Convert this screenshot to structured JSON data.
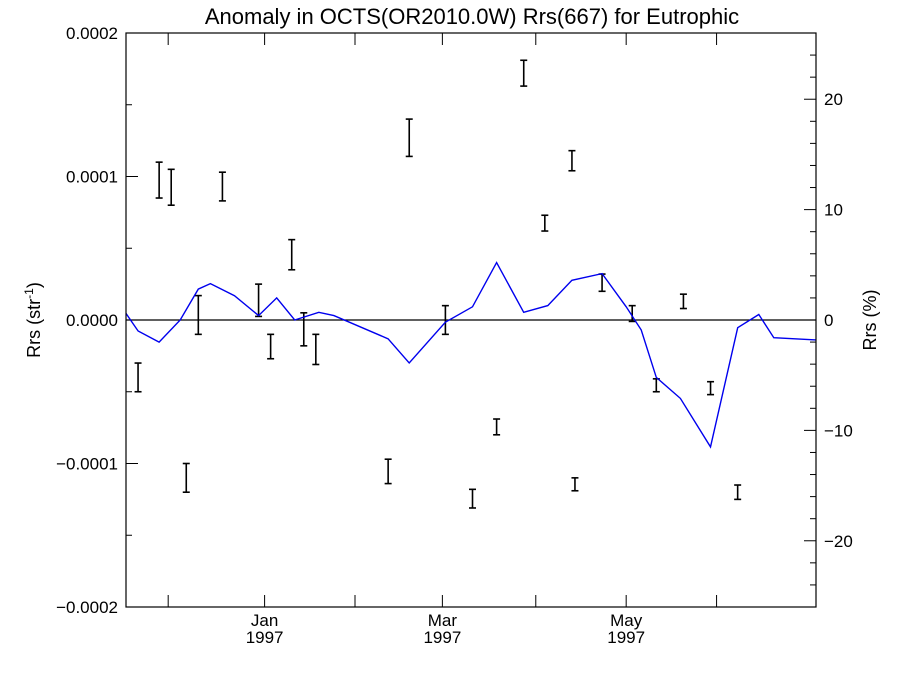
{
  "chart_data": {
    "type": "line",
    "title": "Anomaly in OCTS(OR2010.0W) Rrs(667) for Eutrophic",
    "ylabel_left_main": "Rrs (str",
    "ylabel_left_sup": "-1",
    "ylabel_left_close": ")",
    "ylabel_right": "Rrs (%)",
    "ylim_left": [
      -0.0002,
      0.0002
    ],
    "ylim_right": [
      -26,
      26
    ],
    "yticks_left": [
      {
        "value": 0.0002,
        "label": "0.0002"
      },
      {
        "value": 0.0001,
        "label": "0.0001"
      },
      {
        "value": 0.0,
        "label": "0.0000"
      },
      {
        "value": -0.0001,
        "label": "−0.0001"
      },
      {
        "value": -0.0002,
        "label": "−0.0002"
      }
    ],
    "yticks_right": [
      {
        "value": 20,
        "label": "20"
      },
      {
        "value": 10,
        "label": "10"
      },
      {
        "value": 0,
        "label": "0"
      },
      {
        "value": -10,
        "label": "−10"
      },
      {
        "value": -20,
        "label": "−20"
      }
    ],
    "xlim": [
      "1996-11-16",
      "1997-07-03"
    ],
    "xticks": [
      {
        "date": "1996-11-30",
        "label": ""
      },
      {
        "date": "1997-01-01",
        "label": "Jan",
        "sublabel": "1997"
      },
      {
        "date": "1997-01-31",
        "label": ""
      },
      {
        "date": "1997-03-01",
        "label": "Mar",
        "sublabel": "1997"
      },
      {
        "date": "1997-04-01",
        "label": ""
      },
      {
        "date": "1997-05-01",
        "label": "May",
        "sublabel": "1997"
      },
      {
        "date": "1997-05-31",
        "label": ""
      }
    ],
    "series": [
      {
        "kind": "errorbar",
        "axis": "left",
        "color": "#000000",
        "points": [
          {
            "x": "1996-11-20",
            "low": -5e-05,
            "high": -3e-05
          },
          {
            "x": "1996-11-27",
            "low": 8.5e-05,
            "high": 0.00011
          },
          {
            "x": "1996-12-01",
            "low": 8e-05,
            "high": 0.000105
          },
          {
            "x": "1996-12-06",
            "low": -0.00012,
            "high": -0.0001
          },
          {
            "x": "1996-12-10",
            "low": -1e-05,
            "high": 1.7e-05
          },
          {
            "x": "1996-12-18",
            "low": 8.3e-05,
            "high": 0.000103
          },
          {
            "x": "1996-12-30",
            "low": 2.5e-06,
            "high": 2.5e-05
          },
          {
            "x": "1997-01-03",
            "low": -2.7e-05,
            "high": -1e-05
          },
          {
            "x": "1997-01-10",
            "low": 3.5e-05,
            "high": 5.6e-05
          },
          {
            "x": "1997-01-14",
            "low": -1.8e-05,
            "high": 5e-06
          },
          {
            "x": "1997-01-18",
            "low": -3.1e-05,
            "high": -1e-05
          },
          {
            "x": "1997-02-11",
            "low": -0.000114,
            "high": -9.7e-05
          },
          {
            "x": "1997-02-18",
            "low": 0.000114,
            "high": 0.00014
          },
          {
            "x": "1997-03-02",
            "low": -1e-05,
            "high": 1e-05
          },
          {
            "x": "1997-03-11",
            "low": -0.000131,
            "high": -0.000118
          },
          {
            "x": "1997-03-19",
            "low": -8e-05,
            "high": -6.9e-05
          },
          {
            "x": "1997-03-28",
            "low": 0.000163,
            "high": 0.000181
          },
          {
            "x": "1997-04-04",
            "low": 6.2e-05,
            "high": 7.3e-05
          },
          {
            "x": "1997-04-13",
            "low": 0.000104,
            "high": 0.000118
          },
          {
            "x": "1997-04-14",
            "low": -0.000119,
            "high": -0.00011
          },
          {
            "x": "1997-04-23",
            "low": 2e-05,
            "high": 3.2e-05
          },
          {
            "x": "1997-05-03",
            "low": -1e-06,
            "high": 1e-05
          },
          {
            "x": "1997-05-11",
            "low": -5e-05,
            "high": -4.1e-05
          },
          {
            "x": "1997-05-20",
            "low": 8e-06,
            "high": 1.8e-05
          },
          {
            "x": "1997-05-29",
            "low": -5.2e-05,
            "high": -4.3e-05
          },
          {
            "x": "1997-06-07",
            "low": -0.000125,
            "high": -0.000115
          }
        ]
      },
      {
        "kind": "line",
        "axis": "right",
        "color": "#0000ee",
        "points": [
          {
            "x": "1996-11-16",
            "y": 0.6
          },
          {
            "x": "1996-11-20",
            "y": -1.0
          },
          {
            "x": "1996-11-27",
            "y": -2.0
          },
          {
            "x": "1996-12-04",
            "y": 0.0
          },
          {
            "x": "1996-12-10",
            "y": 2.8
          },
          {
            "x": "1996-12-14",
            "y": 3.3
          },
          {
            "x": "1996-12-22",
            "y": 2.2
          },
          {
            "x": "1996-12-30",
            "y": 0.4
          },
          {
            "x": "1997-01-05",
            "y": 2.0
          },
          {
            "x": "1997-01-11",
            "y": 0.0
          },
          {
            "x": "1997-01-19",
            "y": 0.7
          },
          {
            "x": "1997-01-24",
            "y": 0.4
          },
          {
            "x": "1997-02-11",
            "y": -1.7
          },
          {
            "x": "1997-02-18",
            "y": -3.9
          },
          {
            "x": "1997-03-02",
            "y": -0.2
          },
          {
            "x": "1997-03-11",
            "y": 1.2
          },
          {
            "x": "1997-03-19",
            "y": 5.2
          },
          {
            "x": "1997-03-28",
            "y": 0.7
          },
          {
            "x": "1997-04-05",
            "y": 1.3
          },
          {
            "x": "1997-04-13",
            "y": 3.6
          },
          {
            "x": "1997-04-23",
            "y": 4.2
          },
          {
            "x": "1997-05-01",
            "y": 1.2
          },
          {
            "x": "1997-05-06",
            "y": -0.9
          },
          {
            "x": "1997-05-11",
            "y": -5.2
          },
          {
            "x": "1997-05-19",
            "y": -7.1
          },
          {
            "x": "1997-05-29",
            "y": -11.5
          },
          {
            "x": "1997-06-07",
            "y": -0.7
          },
          {
            "x": "1997-06-14",
            "y": 0.5
          },
          {
            "x": "1997-06-19",
            "y": -1.6
          },
          {
            "x": "1997-07-03",
            "y": -1.8
          }
        ]
      }
    ],
    "zero_line": true,
    "grid": false,
    "legend": "none"
  }
}
